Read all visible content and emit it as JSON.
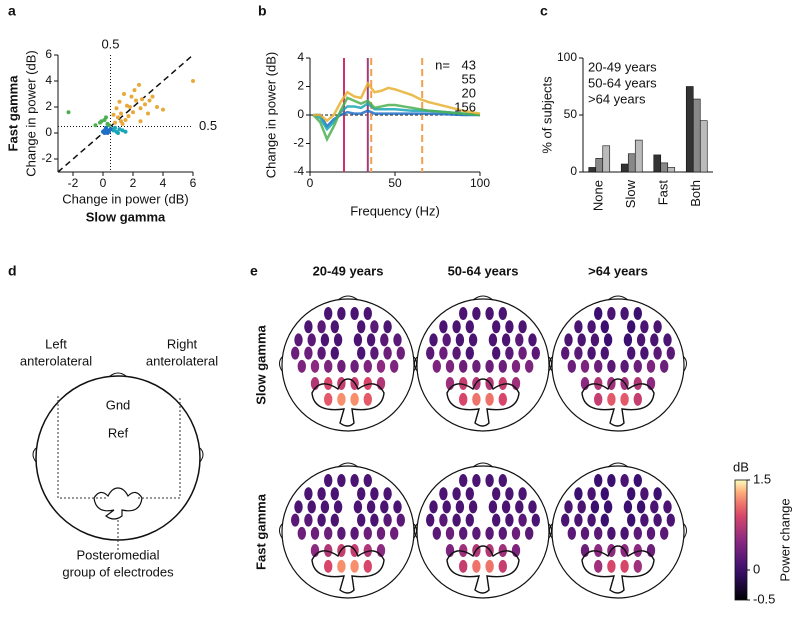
{
  "chart_data": [
    {
      "type": "scatter",
      "panel_label": "a",
      "xlabel": "Change in power (dB)",
      "ylabel": "Change in power (dB)",
      "x_group_label": "Slow gamma",
      "x_group_color": "#d0306b",
      "y_group_label": "Fast gamma",
      "y_group_color": "#f0a040",
      "xline": 0.5,
      "xline_color": "#d0306b",
      "yline": 0.5,
      "yline_color": "#f0a040",
      "diagonal": true,
      "xlim": [
        -3,
        6
      ],
      "ylim": [
        -3,
        6
      ],
      "xticks": [
        -2,
        0,
        2,
        4,
        6
      ],
      "yticks": [
        -2,
        0,
        2,
        4,
        6
      ],
      "series": [
        {
          "color": "#e8a93a",
          "x": [
            0.8,
            1.0,
            1.2,
            1.5,
            1.8,
            2.0,
            2.2,
            2.5,
            2.8,
            3.0,
            3.3,
            3.6,
            4.0,
            1.1,
            1.4,
            1.7,
            2.1,
            2.6,
            0.9,
            1.3,
            1.6,
            2.4,
            3.1,
            6.0,
            2.5,
            1.2,
            0.7,
            1.9
          ],
          "values": [
            0.8,
            1.2,
            1.5,
            1.0,
            2.0,
            1.6,
            2.5,
            1.9,
            2.2,
            1.5,
            2.8,
            2.0,
            1.8,
            2.4,
            3.0,
            1.3,
            3.3,
            2.6,
            1.9,
            0.7,
            2.1,
            3.7,
            2.5,
            4.0,
            0.9,
            0.9,
            1.4,
            2.8
          ]
        },
        {
          "color": "#4caf50",
          "x": [
            -0.5,
            -0.2,
            0.1,
            0.3,
            0.2,
            -0.1,
            0.4,
            -2.3
          ],
          "values": [
            0.6,
            0.8,
            1.0,
            0.7,
            1.2,
            0.9,
            0.6,
            1.6
          ]
        },
        {
          "color": "#1aa6b7",
          "x": [
            0.7,
            0.9,
            1.1,
            0.8,
            1.3,
            1.0,
            1.5,
            0.6
          ],
          "values": [
            0.2,
            0.1,
            0.3,
            0.4,
            0.2,
            0.0,
            0.1,
            0.3
          ]
        },
        {
          "color": "#1f6fc4",
          "x": [
            0.1,
            0.3,
            0.2,
            0.4,
            0.0,
            0.3,
            0.5,
            0.2,
            0.4,
            0.1
          ],
          "values": [
            0.2,
            0.1,
            0.3,
            0.2,
            0.1,
            0.0,
            0.3,
            0.4,
            0.1,
            0.0
          ]
        }
      ]
    },
    {
      "type": "line",
      "panel_label": "b",
      "xlabel": "Frequency (Hz)",
      "ylabel": "Change in power (dB)",
      "legend_title": "n=",
      "xlim": [
        0,
        100
      ],
      "ylim": [
        -4,
        4
      ],
      "xticks": [
        0,
        50,
        100
      ],
      "yticks": [
        -4,
        -2,
        0,
        2,
        4
      ],
      "x": [
        2,
        6,
        10,
        14,
        18,
        22,
        26,
        30,
        34,
        38,
        42,
        46,
        50,
        55,
        60,
        65,
        70,
        80,
        90,
        100
      ],
      "vlines": [
        {
          "value": 20,
          "color": "#d0306b",
          "style": "solid"
        },
        {
          "value": 34,
          "color": "#a03c7c",
          "style": "solid"
        },
        {
          "value": 36,
          "color": "#f0a050",
          "style": "dashed"
        },
        {
          "value": 66,
          "color": "#f0a050",
          "style": "dashed"
        }
      ],
      "series": [
        {
          "name": "43",
          "color": "#1f6fc4",
          "values": [
            0,
            0,
            -0.8,
            -0.3,
            0,
            0.2,
            0.1,
            0.1,
            0.3,
            0.1,
            0.1,
            0.1,
            0.1,
            0.1,
            0.1,
            0.1,
            0.1,
            0.05,
            0,
            0
          ]
        },
        {
          "name": "55",
          "color": "#1aa6b7",
          "values": [
            0,
            -0.2,
            -1,
            -0.5,
            0.2,
            0.6,
            0.6,
            0.5,
            0.8,
            0.4,
            0.4,
            0.4,
            0.4,
            0.35,
            0.3,
            0.3,
            0.3,
            0.2,
            0.1,
            0
          ]
        },
        {
          "name": "20",
          "color": "#4caf50",
          "values": [
            0,
            -0.5,
            -1.7,
            -0.8,
            0.3,
            1.2,
            1.0,
            0.8,
            1.0,
            0.5,
            0.6,
            0.7,
            0.7,
            0.6,
            0.5,
            0.4,
            0.3,
            0.2,
            0.1,
            0
          ]
        },
        {
          "name": "156",
          "color": "#e8b030",
          "values": [
            0,
            0,
            -0.4,
            0,
            0.9,
            1.6,
            1.3,
            1.2,
            2.2,
            1.6,
            1.7,
            1.9,
            1.8,
            1.6,
            1.4,
            1.1,
            0.9,
            0.6,
            0.3,
            0.1
          ]
        }
      ]
    },
    {
      "type": "bar",
      "panel_label": "c",
      "ylabel": "% of subjects",
      "categories": [
        "None",
        "Slow",
        "Fast",
        "Both"
      ],
      "category_colors": [
        "#1f6fc4",
        "#1aa6b7",
        "#4caf50",
        "#e8b030"
      ],
      "ylim": [
        0,
        100
      ],
      "yticks": [
        0,
        50,
        100
      ],
      "series": [
        {
          "name": "20-49 years",
          "color": "#333333",
          "values": [
            4,
            7,
            15,
            75
          ]
        },
        {
          "name": "50-64 years",
          "color": "#888888",
          "values": [
            12,
            16,
            8,
            64
          ]
        },
        {
          "name": ">64 years",
          "color": "#bbbbbb",
          "values": [
            23,
            28,
            4,
            45
          ]
        }
      ]
    },
    {
      "type": "diagram",
      "panel_label": "d",
      "left": [
        "Left",
        "anterolateral"
      ],
      "right": [
        "Right",
        "anterolateral"
      ],
      "gnd": "Gnd",
      "ref": "Ref",
      "posterior": [
        "Posteromedial",
        "group of electrodes"
      ]
    },
    {
      "type": "topoplot",
      "panel_label": "e",
      "columns": [
        "20-49 years",
        "50-64 years",
        ">64 years"
      ],
      "column_colors": [
        "#333333",
        "#888888",
        "#bbbbbb"
      ],
      "rows": [
        "Slow gamma",
        "Fast gamma"
      ],
      "row_colors": [
        "#d0306b",
        "#f0a040"
      ],
      "clim": [
        -0.5,
        1.5
      ],
      "cticks": [
        -0.5,
        0,
        1.5
      ],
      "cunit": "dB",
      "clabel": "Power change",
      "maps": [
        [
          [
            0.1,
            0.1,
            0.1,
            0.1,
            0.1,
            0.2,
            0.1,
            0.1,
            0.2,
            0.1,
            0.2,
            0.2,
            0.1,
            0.1,
            0.1,
            0.1,
            0.2,
            0.2,
            0.3,
            0.3,
            0.2,
            0.1,
            0.1,
            0.2,
            0.3,
            0.3,
            0.4,
            0.5,
            0.4,
            0.3,
            0.3,
            0.4,
            0.5,
            0.4,
            0.7,
            0.9,
            0.8,
            0.8,
            0.9,
            0.7,
            1.0,
            1.2,
            1.2,
            1.0
          ],
          [
            0.1,
            0.1,
            0.1,
            0.1,
            0.1,
            0.1,
            0.1,
            0.1,
            0.1,
            0.1,
            0.1,
            0.2,
            0.1,
            0.1,
            0.1,
            0.1,
            0.2,
            0.1,
            0.2,
            0.3,
            0.2,
            0.1,
            0.1,
            0.2,
            0.3,
            0.2,
            0.4,
            0.4,
            0.3,
            0.3,
            0.3,
            0.3,
            0.4,
            0.4,
            0.6,
            0.8,
            0.7,
            0.7,
            0.8,
            0.6,
            0.9,
            1.1,
            1.1,
            0.9
          ],
          [
            0.0,
            0.1,
            0.1,
            0.0,
            0.1,
            0.1,
            0.0,
            0.0,
            0.1,
            0.1,
            0.1,
            0.1,
            0.1,
            0.0,
            0.0,
            0.1,
            0.1,
            0.1,
            0.2,
            0.2,
            0.1,
            0.1,
            0.1,
            0.1,
            0.2,
            0.2,
            0.3,
            0.4,
            0.3,
            0.2,
            0.2,
            0.3,
            0.4,
            0.3,
            0.5,
            0.7,
            0.6,
            0.6,
            0.7,
            0.5,
            0.8,
            1.0,
            1.0,
            0.8
          ]
        ],
        [
          [
            0.1,
            0.1,
            0.1,
            0.1,
            0.1,
            0.1,
            0.1,
            0.1,
            0.1,
            0.1,
            0.1,
            0.1,
            0.1,
            0.1,
            0.1,
            0.1,
            0.1,
            0.1,
            0.2,
            0.2,
            0.1,
            0.1,
            0.1,
            0.1,
            0.2,
            0.2,
            0.3,
            0.3,
            0.3,
            0.2,
            0.2,
            0.3,
            0.3,
            0.3,
            0.5,
            0.7,
            0.8,
            0.8,
            0.7,
            0.5,
            0.9,
            1.2,
            1.2,
            0.9
          ],
          [
            0.1,
            0.1,
            0.1,
            0.1,
            0.1,
            0.1,
            0.1,
            0.1,
            0.1,
            0.1,
            0.1,
            0.1,
            0.1,
            0.1,
            0.1,
            0.1,
            0.1,
            0.1,
            0.1,
            0.2,
            0.1,
            0.1,
            0.1,
            0.1,
            0.2,
            0.1,
            0.2,
            0.3,
            0.2,
            0.2,
            0.2,
            0.2,
            0.3,
            0.2,
            0.4,
            0.6,
            0.7,
            0.7,
            0.6,
            0.4,
            0.8,
            1.1,
            1.1,
            0.8
          ],
          [
            0.0,
            0.0,
            0.1,
            0.0,
            0.0,
            0.1,
            0.0,
            0.0,
            0.1,
            0.0,
            0.1,
            0.1,
            0.0,
            0.0,
            0.0,
            0.0,
            0.1,
            0.1,
            0.1,
            0.1,
            0.1,
            0.0,
            0.0,
            0.1,
            0.1,
            0.1,
            0.2,
            0.2,
            0.2,
            0.1,
            0.1,
            0.2,
            0.2,
            0.2,
            0.3,
            0.5,
            0.5,
            0.5,
            0.5,
            0.3,
            0.6,
            0.9,
            0.9,
            0.6
          ]
        ]
      ]
    }
  ]
}
